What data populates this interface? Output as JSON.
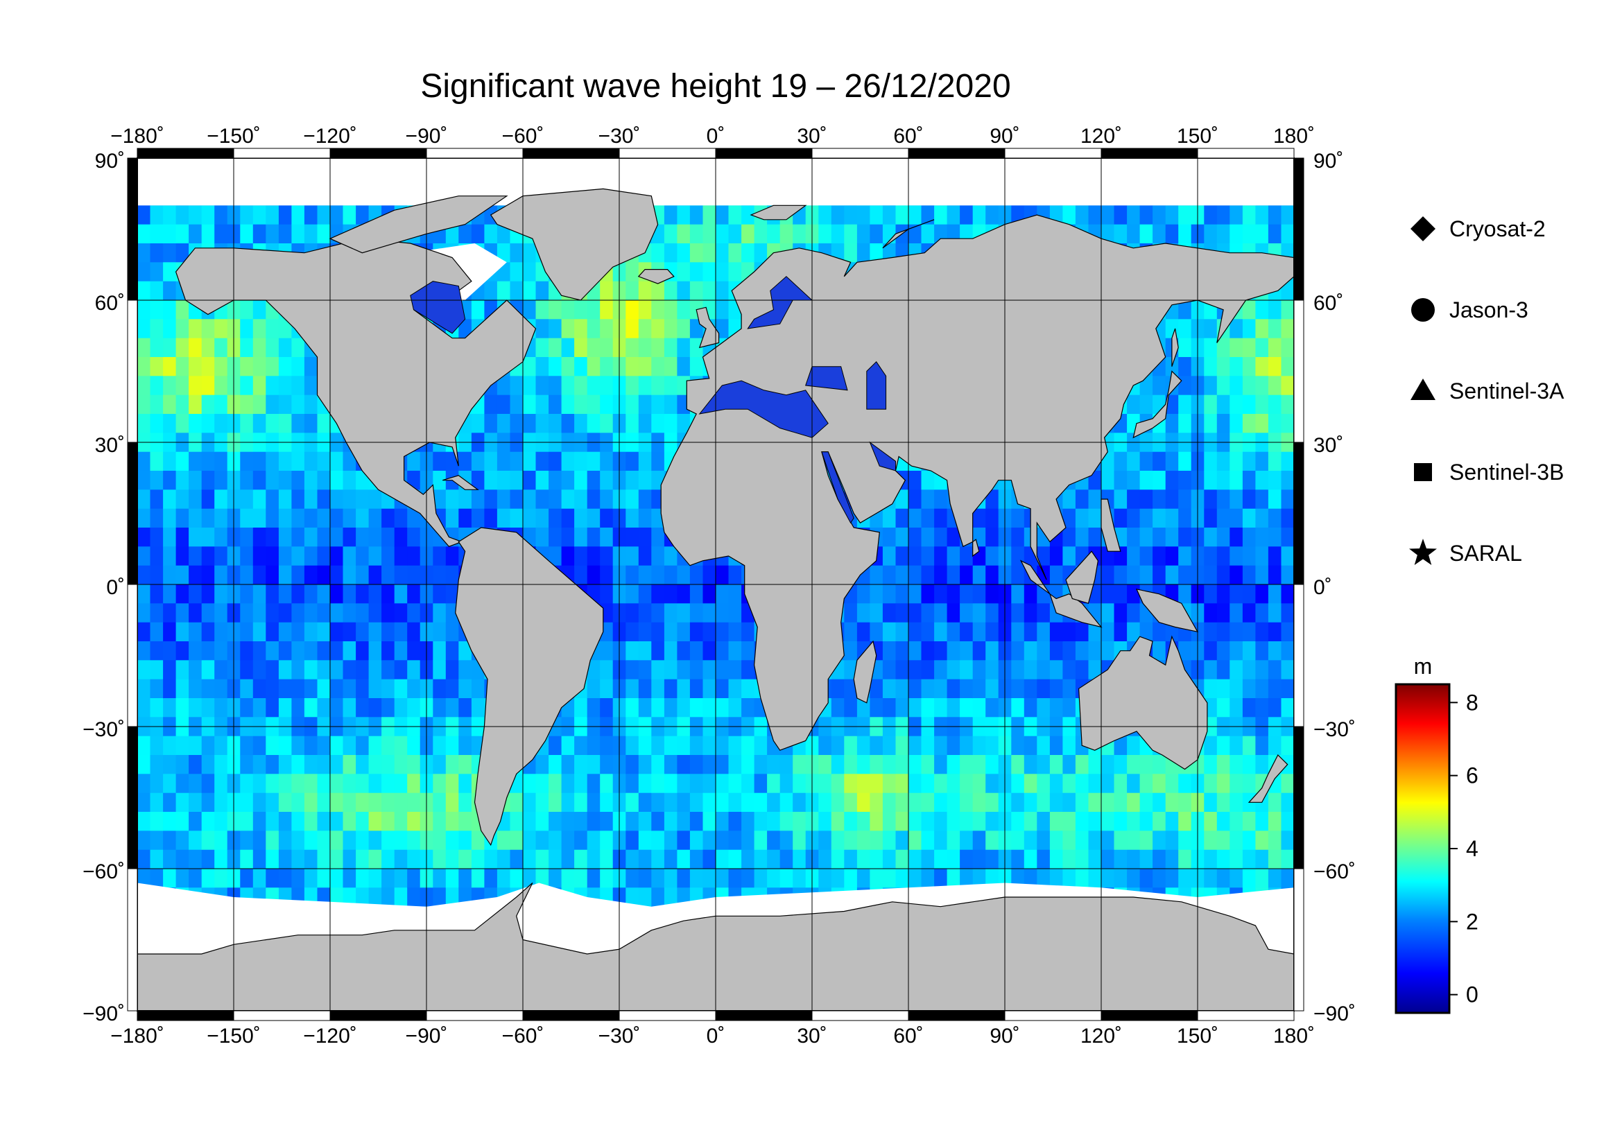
{
  "title": "Significant wave height 19 – 26/12/2020",
  "map": {
    "projection": "equirectangular",
    "lon_range": [
      -180,
      180
    ],
    "lat_range": [
      -90,
      90
    ],
    "lon_ticks": [
      {
        "value": -180,
        "label": "−180˚"
      },
      {
        "value": -150,
        "label": "−150˚"
      },
      {
        "value": -120,
        "label": "−120˚"
      },
      {
        "value": -90,
        "label": "−90˚"
      },
      {
        "value": -60,
        "label": "−60˚"
      },
      {
        "value": -30,
        "label": "−30˚"
      },
      {
        "value": 0,
        "label": "0˚"
      },
      {
        "value": 30,
        "label": "30˚"
      },
      {
        "value": 60,
        "label": "60˚"
      },
      {
        "value": 90,
        "label": "90˚"
      },
      {
        "value": 120,
        "label": "120˚"
      },
      {
        "value": 150,
        "label": "150˚"
      },
      {
        "value": 180,
        "label": "180˚"
      }
    ],
    "lat_ticks": [
      {
        "value": 90,
        "label": "90˚"
      },
      {
        "value": 60,
        "label": "60˚"
      },
      {
        "value": 30,
        "label": "30˚"
      },
      {
        "value": 0,
        "label": "0˚"
      },
      {
        "value": -30,
        "label": "−30˚"
      },
      {
        "value": -60,
        "label": "−60˚"
      },
      {
        "value": -90,
        "label": "−90˚"
      }
    ],
    "grid": true,
    "land_color": "#bebebe",
    "ice_color": "#ffffff",
    "ocean_base_color": "#1e6cf0"
  },
  "legend": {
    "items": [
      {
        "name": "Cryosat-2",
        "symbol": "diamond"
      },
      {
        "name": "Jason-3",
        "symbol": "circle"
      },
      {
        "name": "Sentinel-3A",
        "symbol": "triangle"
      },
      {
        "name": "Sentinel-3B",
        "symbol": "square"
      },
      {
        "name": "SARAL",
        "symbol": "star"
      }
    ]
  },
  "colorbar": {
    "unit": "m",
    "min": -0.5,
    "max": 8.5,
    "ticks": [
      {
        "value": 0,
        "label": "0"
      },
      {
        "value": 2,
        "label": "2"
      },
      {
        "value": 4,
        "label": "4"
      },
      {
        "value": 6,
        "label": "6"
      },
      {
        "value": 8,
        "label": "8"
      }
    ],
    "colors": [
      "#00008f",
      "#0000ff",
      "#0080ff",
      "#00ffff",
      "#80ff80",
      "#ffff00",
      "#ff8000",
      "#ff0000",
      "#800000"
    ]
  }
}
